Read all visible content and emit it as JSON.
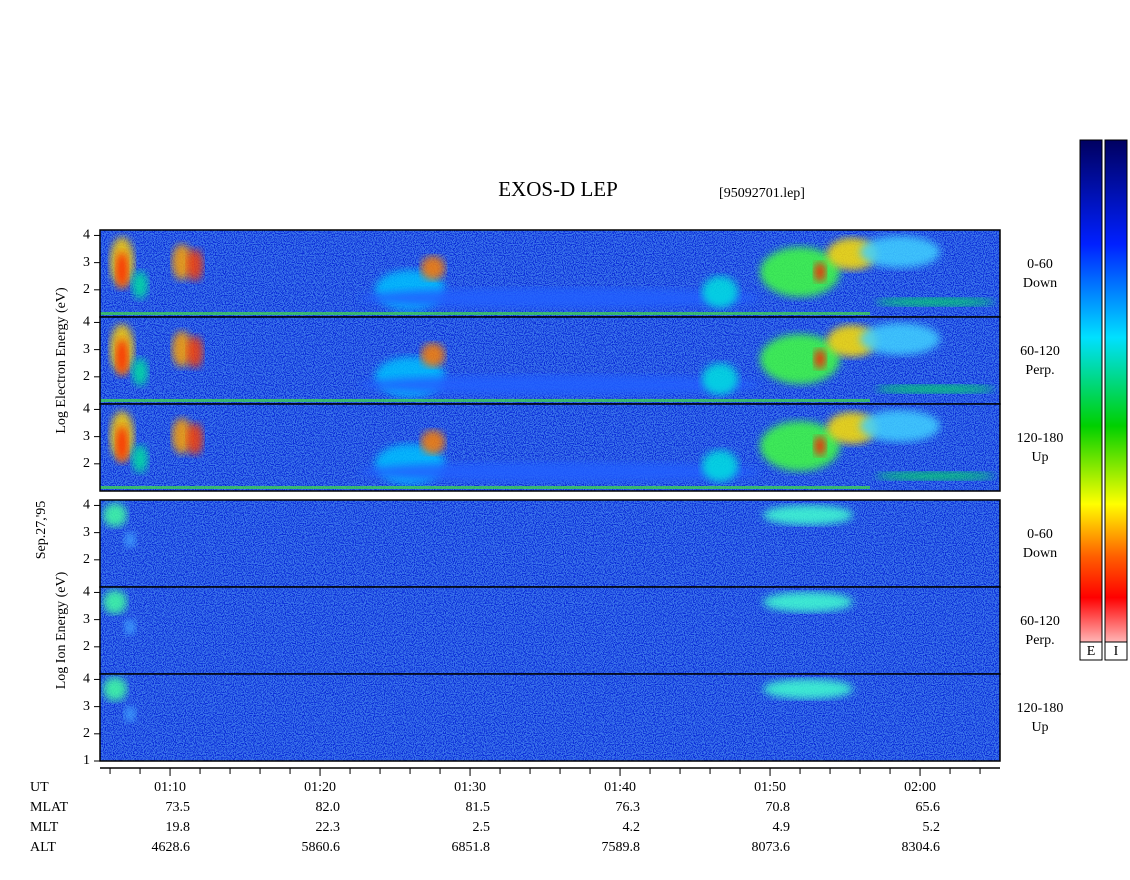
{
  "chart_data": {
    "type": "spectrogram",
    "title": "EXOS-D LEP",
    "file_label": "[95092701.lep]",
    "date_label": "Sep.27,'95",
    "ylim": [
      1,
      4.2
    ],
    "xlim": [
      65.33,
      125.33
    ],
    "groups": [
      {
        "ylabel": "Log Electron Energy (eV)",
        "panels": [
          {
            "name_lines": [
              "0-60",
              "Down"
            ],
            "yticks": [
              2,
              3,
              4
            ]
          },
          {
            "name_lines": [
              "60-120",
              "Perp."
            ],
            "yticks": [
              2,
              3,
              4
            ]
          },
          {
            "name_lines": [
              "120-180",
              "Up"
            ],
            "yticks": [
              2,
              3,
              4
            ]
          }
        ]
      },
      {
        "ylabel": "Log Ion Energy (eV)",
        "panels": [
          {
            "name_lines": [
              "0-60",
              "Down"
            ],
            "yticks": [
              2,
              3,
              4
            ]
          },
          {
            "name_lines": [
              "60-120",
              "Perp."
            ],
            "yticks": [
              2,
              3,
              4
            ]
          },
          {
            "name_lines": [
              "120-180",
              "Up"
            ],
            "yticks": [
              1,
              2,
              3,
              4
            ]
          }
        ]
      }
    ],
    "xticks": [
      {
        "value": 70,
        "label": "01:10"
      },
      {
        "value": 80,
        "label": "01:20"
      },
      {
        "value": 90,
        "label": "01:30"
      },
      {
        "value": 100,
        "label": "01:40"
      },
      {
        "value": 110,
        "label": "01:50"
      },
      {
        "value": 120,
        "label": "02:00"
      }
    ],
    "xminorticks": [
      66,
      68,
      72,
      74,
      76,
      78,
      82,
      84,
      86,
      88,
      92,
      94,
      96,
      98,
      102,
      104,
      106,
      108,
      112,
      114,
      116,
      118,
      122,
      124
    ],
    "xtick_row_name": "UT",
    "ephemeris": [
      {
        "name": "MLAT",
        "values": [
          "73.5",
          "82.0",
          "81.5",
          "76.3",
          "70.8",
          "65.6"
        ]
      },
      {
        "name": "MLT",
        "values": [
          "19.8",
          "22.3",
          "2.5",
          "4.2",
          "4.9",
          "5.2"
        ]
      },
      {
        "name": "ALT",
        "values": [
          "4628.6",
          "5860.6",
          "6851.8",
          "7589.8",
          "8073.6",
          "8304.6"
        ]
      }
    ],
    "colorbars": [
      "E",
      "I"
    ]
  }
}
